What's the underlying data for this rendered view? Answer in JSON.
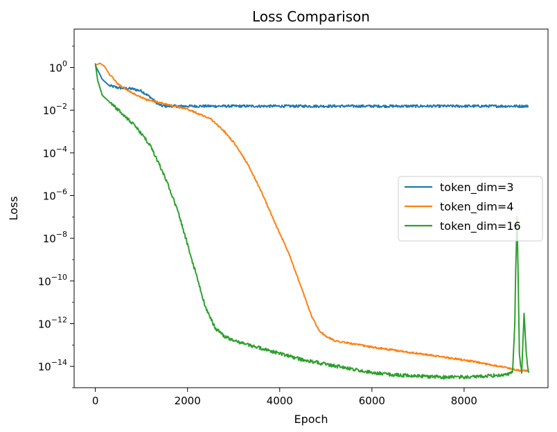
{
  "chart_data": {
    "type": "line",
    "title": "Loss Comparison",
    "xlabel": "Epoch",
    "ylabel": "Loss",
    "y_scale": "log",
    "xlim": [
      -460,
      9820
    ],
    "ylim_log10": [
      -15.0,
      1.8
    ],
    "xticks": [
      0,
      2000,
      4000,
      6000,
      8000
    ],
    "xtick_labels": [
      "0",
      "2000",
      "4000",
      "6000",
      "8000"
    ],
    "yticks_log10": [
      0,
      -2,
      -4,
      -6,
      -8,
      -10,
      -12,
      -14
    ],
    "ytick_labels": [
      {
        "base": "10",
        "exp": "0"
      },
      {
        "base": "10",
        "exp": "−2"
      },
      {
        "base": "10",
        "exp": "−4"
      },
      {
        "base": "10",
        "exp": "−6"
      },
      {
        "base": "10",
        "exp": "−8"
      },
      {
        "base": "10",
        "exp": "−10"
      },
      {
        "base": "10",
        "exp": "−12"
      },
      {
        "base": "10",
        "exp": "−14"
      }
    ],
    "legend_position": "center-right",
    "series": [
      {
        "name": "token_dim=3",
        "color": "#1f77b4",
        "noise_log10": 0.06,
        "x": [
          0,
          150,
          300,
          500,
          800,
          1000,
          1200,
          1350,
          1450,
          1600,
          2000,
          3000,
          4000,
          5000,
          6000,
          7000,
          8000,
          8500,
          9000,
          9400
        ],
        "log10_y": [
          0.1,
          -0.55,
          -0.85,
          -0.95,
          -1.0,
          -1.1,
          -1.4,
          -1.7,
          -1.8,
          -1.81,
          -1.81,
          -1.81,
          -1.81,
          -1.81,
          -1.81,
          -1.81,
          -1.81,
          -1.81,
          -1.81,
          -1.81
        ]
      },
      {
        "name": "token_dim=4",
        "color": "#ff7f0e",
        "noise_log10": 0.04,
        "x": [
          0,
          100,
          200,
          300,
          500,
          800,
          1100,
          1500,
          2000,
          2500,
          2800,
          3000,
          3300,
          3600,
          3900,
          4200,
          4500,
          4700,
          4850,
          5000,
          5200,
          6000,
          7000,
          8000,
          8500,
          8800,
          9200,
          9400
        ],
        "log10_y": [
          0.1,
          0.2,
          0.05,
          -0.3,
          -0.8,
          -1.2,
          -1.5,
          -1.7,
          -1.95,
          -2.4,
          -3.0,
          -3.5,
          -4.5,
          -5.8,
          -7.3,
          -8.7,
          -10.5,
          -11.7,
          -12.3,
          -12.6,
          -12.8,
          -13.1,
          -13.4,
          -13.7,
          -13.9,
          -14.0,
          -14.2,
          -14.2
        ]
      },
      {
        "name": "token_dim=16",
        "color": "#2ca02c",
        "noise_log10": 0.08,
        "x": [
          0,
          50,
          150,
          300,
          500,
          800,
          1000,
          1200,
          1400,
          1600,
          1800,
          2000,
          2200,
          2400,
          2600,
          2800,
          3000,
          3500,
          4000,
          4500,
          5000,
          5500,
          6000,
          6500,
          7000,
          7500,
          8000,
          8500,
          8900,
          9050,
          9100,
          9120,
          9150,
          9170,
          9200,
          9250,
          9300,
          9350,
          9400
        ],
        "log10_y": [
          0.2,
          -0.6,
          -1.3,
          -1.6,
          -2.0,
          -2.6,
          -3.1,
          -3.7,
          -4.6,
          -5.6,
          -6.8,
          -8.3,
          -9.8,
          -11.3,
          -12.2,
          -12.6,
          -12.8,
          -13.1,
          -13.4,
          -13.7,
          -13.9,
          -14.1,
          -14.3,
          -14.4,
          -14.45,
          -14.5,
          -14.5,
          -14.45,
          -14.4,
          -14.3,
          -12.0,
          -9.5,
          -7.0,
          -9.5,
          -13.5,
          -14.3,
          -11.5,
          -13.5,
          -14.3
        ]
      }
    ]
  }
}
